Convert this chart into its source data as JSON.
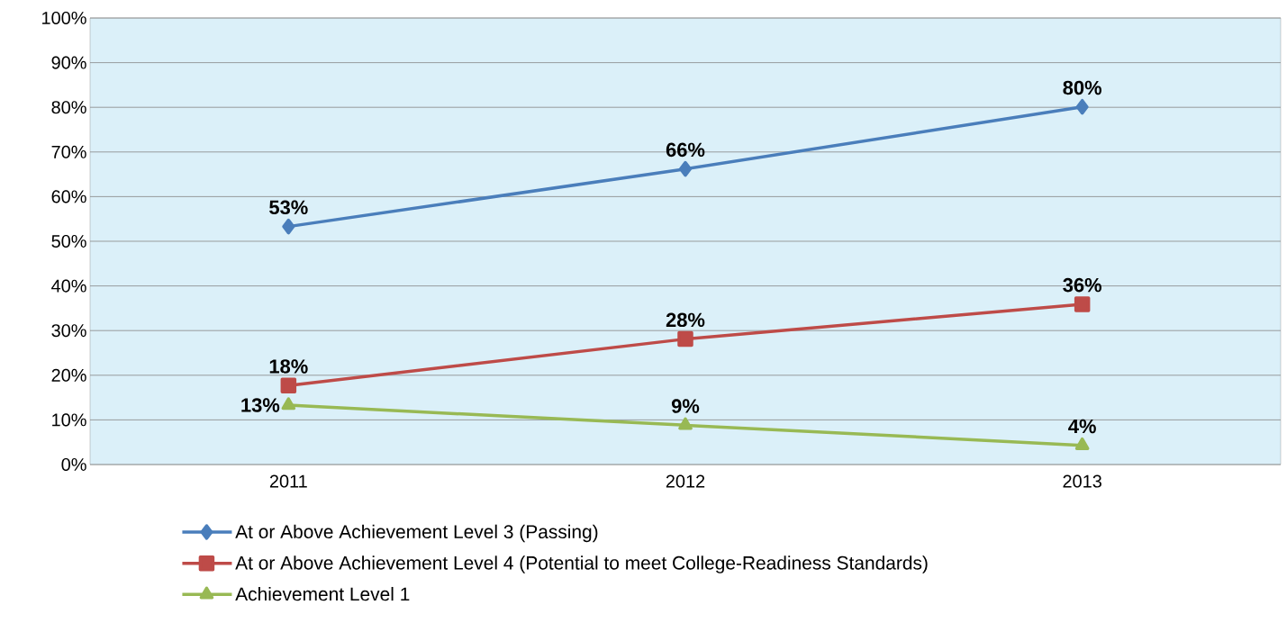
{
  "chart_data": {
    "type": "line",
    "categories": [
      "2011",
      "2012",
      "2013"
    ],
    "series": [
      {
        "name": "At or Above Achievement Level 3 (Passing)",
        "color": "#4a7ebb",
        "marker": "diamond",
        "values": [
          53.3,
          66.2,
          80.1
        ],
        "value_labels": [
          "53%",
          "66%",
          "80%"
        ]
      },
      {
        "name": "At or Above Achievement Level 4 (Potential to meet College-Readiness Standards)",
        "color": "#be4b48",
        "marker": "square",
        "values": [
          17.7,
          28.1,
          35.9
        ],
        "value_labels": [
          "18%",
          "28%",
          "36%"
        ]
      },
      {
        "name": "Achievement Level 1",
        "color": "#98b954",
        "marker": "triangle",
        "values": [
          13.3,
          8.8,
          4.3
        ],
        "value_labels": [
          "13%",
          "9%",
          "4%"
        ]
      }
    ],
    "ylim": [
      0,
      100
    ],
    "yticks": [
      {
        "value": 0,
        "label": "0%"
      },
      {
        "value": 10,
        "label": "10%"
      },
      {
        "value": 20,
        "label": "20%"
      },
      {
        "value": 30,
        "label": "30%"
      },
      {
        "value": 40,
        "label": "40%"
      },
      {
        "value": 50,
        "label": "50%"
      },
      {
        "value": 60,
        "label": "60%"
      },
      {
        "value": 70,
        "label": "70%"
      },
      {
        "value": 80,
        "label": "80%"
      },
      {
        "value": 90,
        "label": "90%"
      },
      {
        "value": 100,
        "label": "100%"
      }
    ],
    "grid": "y",
    "legend": "bottom",
    "line_style": "solid"
  }
}
